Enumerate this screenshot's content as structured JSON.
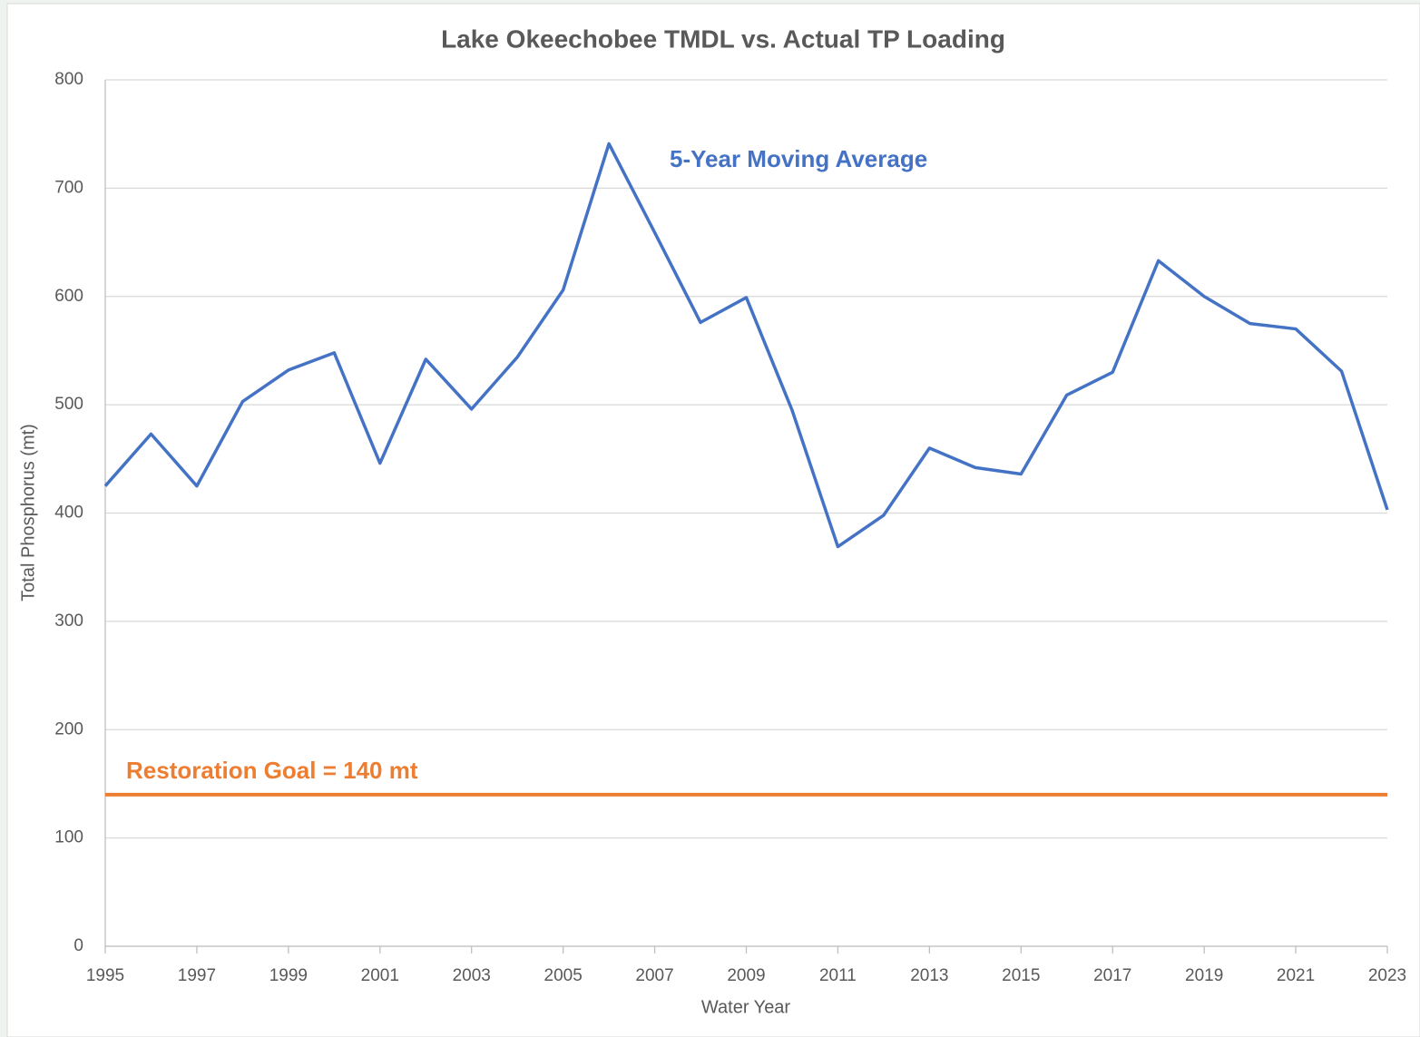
{
  "chart_data": {
    "type": "line",
    "title": "Lake Okeechobee TMDL vs. Actual TP Loading",
    "xlabel": "Water Year",
    "ylabel": "Total Phosphorus (mt)",
    "x": [
      1995,
      1996,
      1997,
      1998,
      1999,
      2000,
      2001,
      2002,
      2003,
      2004,
      2005,
      2006,
      2007,
      2008,
      2009,
      2010,
      2011,
      2012,
      2013,
      2014,
      2015,
      2016,
      2017,
      2018,
      2019,
      2020,
      2021,
      2022,
      2023
    ],
    "series": [
      {
        "name": "5-Year Moving Average",
        "color": "#4472c4",
        "values": [
          425,
          473,
          425,
          503,
          532,
          548,
          446,
          542,
          496,
          544,
          606,
          741,
          659,
          576,
          599,
          495,
          369,
          398,
          460,
          442,
          436,
          509,
          530,
          633,
          600,
          575,
          570,
          531,
          403
        ]
      }
    ],
    "reference_line": {
      "value": 140,
      "label": "Restoration Goal = 140 mt",
      "color": "#ed7d31"
    },
    "xlim": [
      1995,
      2023
    ],
    "xticks": [
      1995,
      1997,
      1999,
      2001,
      2003,
      2005,
      2007,
      2009,
      2011,
      2013,
      2015,
      2017,
      2019,
      2021,
      2023
    ],
    "ylim": [
      0,
      800
    ],
    "yticks": [
      0,
      100,
      200,
      300,
      400,
      500,
      600,
      700,
      800
    ],
    "grid": true
  }
}
